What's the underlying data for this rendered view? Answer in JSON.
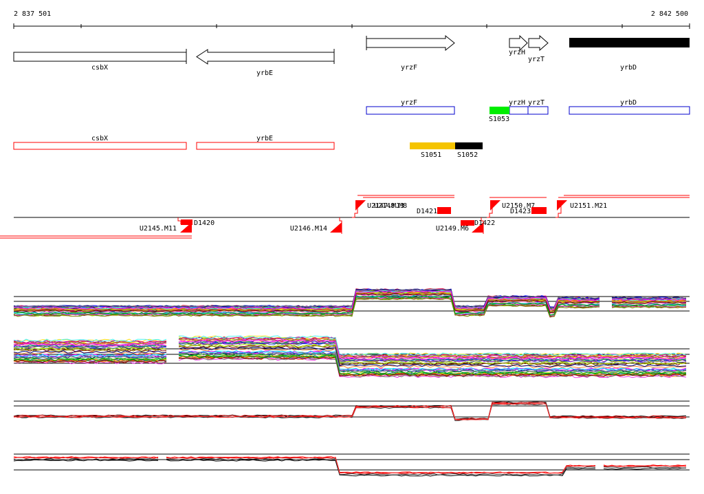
{
  "coordinates": {
    "start_label": "2 837 501",
    "end_label": "2 842 500"
  },
  "genes": [
    {
      "name": "csbX",
      "strand": "none"
    },
    {
      "name": "yrbE",
      "strand": "-"
    },
    {
      "name": "yrzF",
      "strand": "+"
    },
    {
      "name": "yrzH",
      "strand": "+"
    },
    {
      "name": "yrzT",
      "strand": "+"
    },
    {
      "name": "yrbD",
      "strand": "filled"
    }
  ],
  "annotation_row_blue": [
    "yrzF",
    "yrzH",
    "yrzT",
    "yrbD"
  ],
  "annotation_row_red": [
    "csbX",
    "yrbE"
  ],
  "segments": [
    {
      "label": "S1053",
      "color": "#00ee00"
    },
    {
      "label": "S1051",
      "color": "#f5c400"
    },
    {
      "label": "S1052",
      "color": "#000000"
    }
  ],
  "transcription_units": {
    "forward": [
      "U2147.M13",
      "U2148.M8",
      "U2150.M7",
      "U2151.M21"
    ],
    "reverse": [
      "U2145.M11",
      "U2146.M14",
      "U2149.M6"
    ]
  },
  "downshifts": [
    "D1420",
    "D1421",
    "D1422",
    "D1423"
  ],
  "colors": {
    "red": "#ff0000",
    "blue": "#0000cc",
    "gold": "#f5c400",
    "green": "#00ee00"
  }
}
